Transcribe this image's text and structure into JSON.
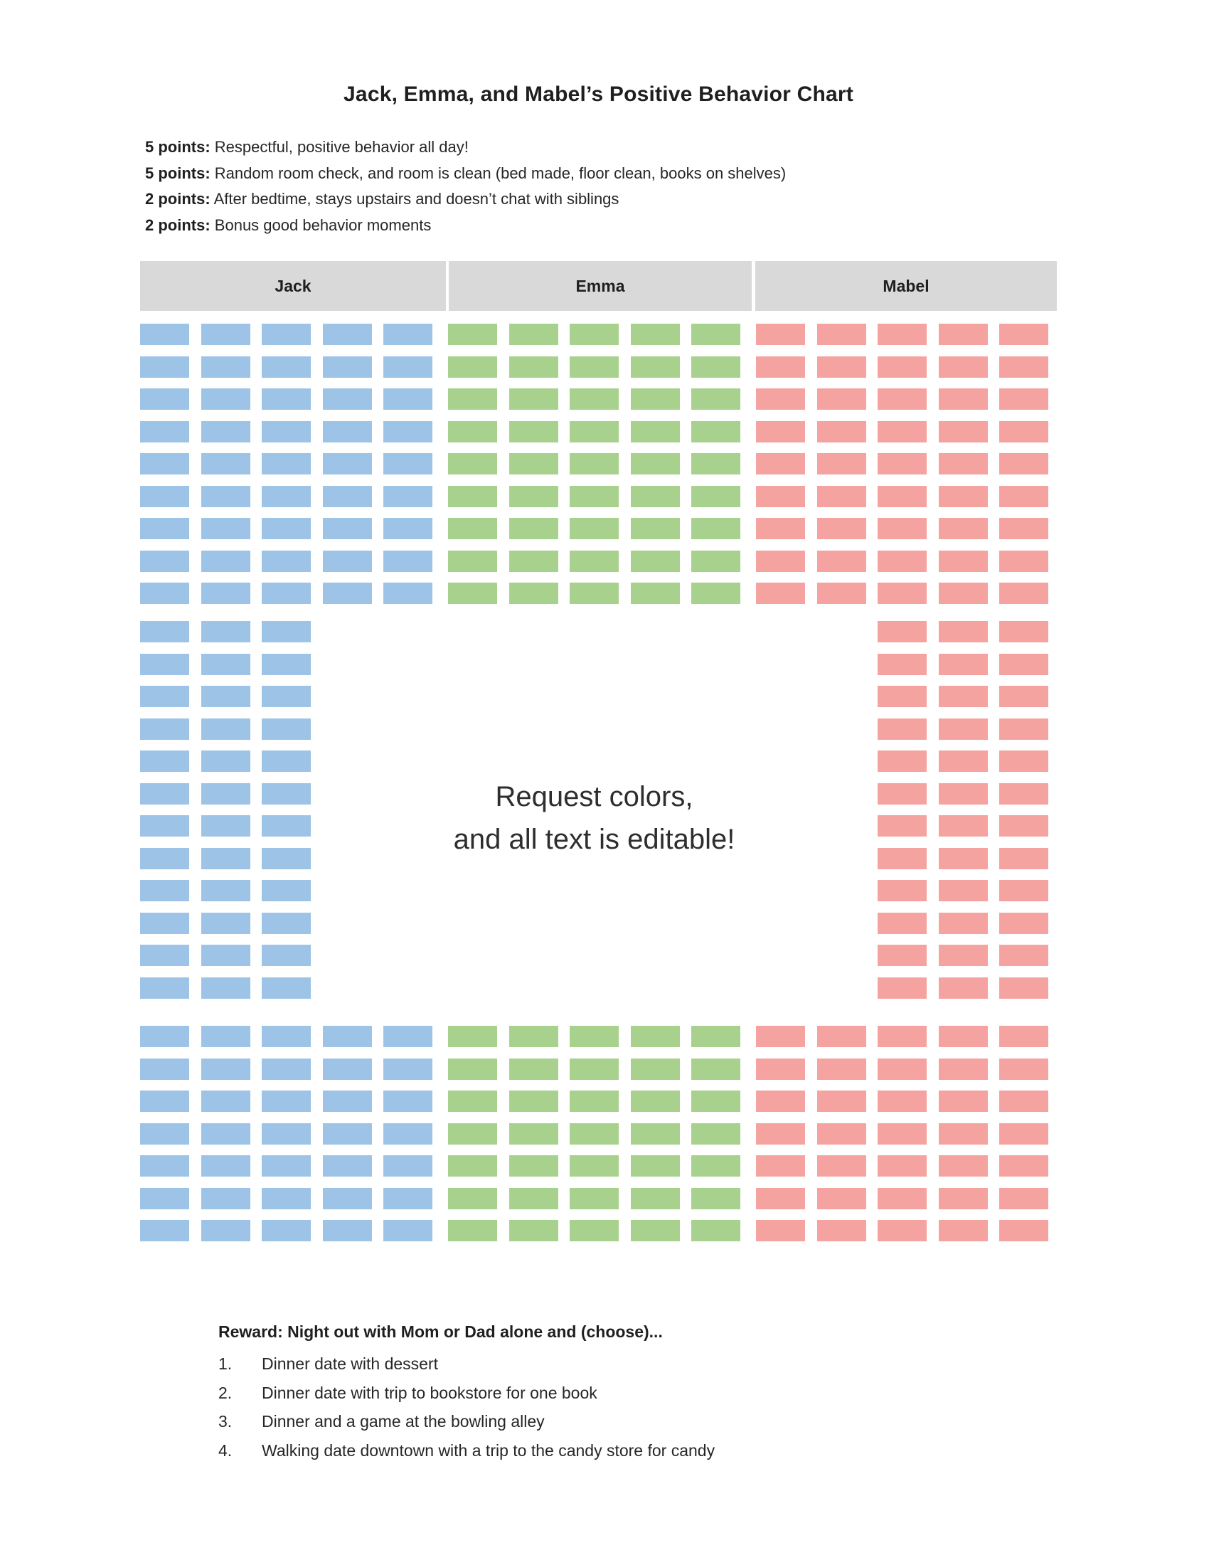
{
  "page": {
    "title": "Jack, Emma, and Mabel’s Positive Behavior Chart"
  },
  "legend": {
    "items": [
      {
        "points": "5 points:",
        "text": "Respectful, positive behavior all day!"
      },
      {
        "points": "5 points:",
        "text": "Random room check, and room is clean (bed made, floor clean, books on shelves)"
      },
      {
        "points": "2 points:",
        "text": "After bedtime, stays upstairs and doesn’t chat with siblings"
      },
      {
        "points": "2 points:",
        "text": "Bonus good behavior moments"
      }
    ]
  },
  "chart_data": {
    "type": "table",
    "title": "Jack, Emma, and Mabel’s Positive Behavior Chart",
    "header_bg": "#D9D9D9",
    "people": [
      {
        "name": "Jack",
        "color": "#9DC3E6"
      },
      {
        "name": "Emma",
        "color": "#A9D18E"
      },
      {
        "name": "Mabel",
        "color": "#F5A3A0"
      }
    ],
    "blocks": [
      {
        "rows": 9,
        "columns": [
          [
            0,
            1,
            2,
            3,
            4
          ],
          [
            0,
            1,
            2,
            3,
            4
          ],
          [
            0,
            1,
            2,
            3,
            4
          ]
        ]
      },
      {
        "rows": 12,
        "columns": [
          [
            0,
            1,
            2
          ],
          [],
          [
            2,
            3,
            4
          ]
        ]
      },
      {
        "rows": 7,
        "columns": [
          [
            0,
            1,
            2,
            3,
            4
          ],
          [
            0,
            1,
            2,
            3,
            4
          ],
          [
            0,
            1,
            2,
            3,
            4
          ]
        ]
      }
    ],
    "total_boxes": {
      "Jack": 116,
      "Emma": 80,
      "Mabel": 116
    }
  },
  "center_note": {
    "line1": "Request colors,",
    "line2": "and all text is editable!"
  },
  "rewards": {
    "heading": "Reward: Night out with Mom or Dad alone and (choose)...",
    "items": [
      {
        "num": "1.",
        "text": "Dinner date with dessert"
      },
      {
        "num": "2.",
        "text": "Dinner date with trip to bookstore for one book"
      },
      {
        "num": "3.",
        "text": "Dinner and a game at the bowling alley"
      },
      {
        "num": "4.",
        "text": "Walking date downtown with a trip to the candy store for candy"
      }
    ]
  }
}
